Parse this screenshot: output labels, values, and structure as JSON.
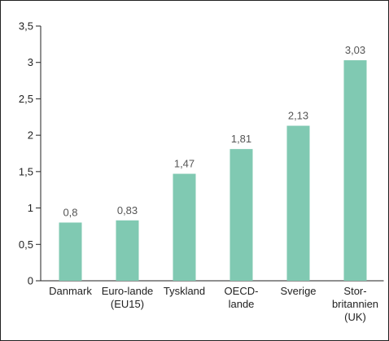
{
  "chart_data": {
    "type": "bar",
    "title": "",
    "xlabel": "",
    "ylabel": "",
    "categories": [
      [
        "Danmark"
      ],
      [
        "Euro-lande",
        "(EU15)"
      ],
      [
        "Tyskland"
      ],
      [
        "OECD-",
        "lande"
      ],
      [
        "Sverige"
      ],
      [
        "Stor-",
        "britannien",
        "(UK)"
      ]
    ],
    "values": [
      0.8,
      0.83,
      1.47,
      1.81,
      2.13,
      3.03
    ],
    "value_labels": [
      "0,8",
      "0,83",
      "1,47",
      "1,81",
      "2,13",
      "3,03"
    ],
    "ylim": [
      0,
      3.5
    ],
    "yticks": [
      0,
      0.5,
      1,
      1.5,
      2,
      2.5,
      3,
      3.5
    ],
    "ytick_labels": [
      "0",
      "0,5",
      "1",
      "1,5",
      "2",
      "2,5",
      "3",
      "3,5"
    ],
    "grid": false,
    "legend": "none",
    "bar_color": "#80C9B2"
  }
}
